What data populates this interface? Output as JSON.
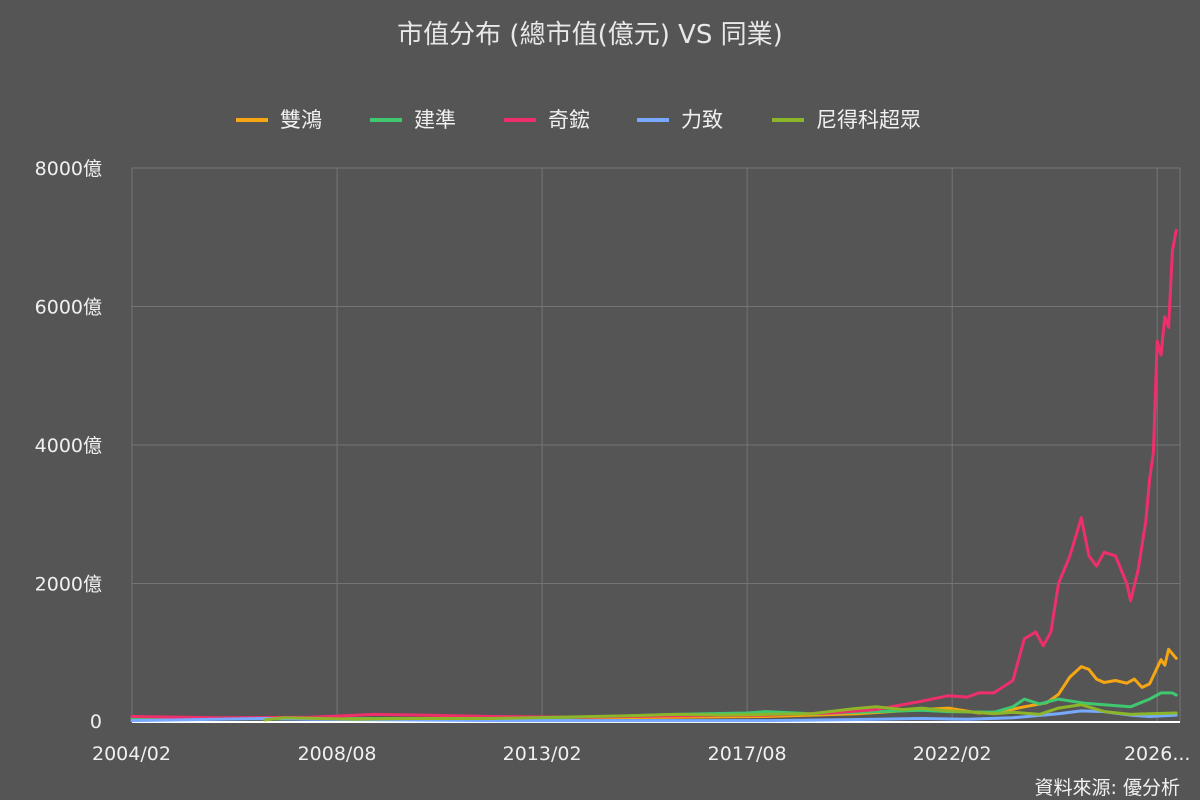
{
  "chart_data": {
    "type": "line",
    "title": "市值分布 (總市值(億元) VS 同業)",
    "source": "資料來源: 優分析",
    "ylim": [
      0,
      8000
    ],
    "y_ticks": [
      "0",
      "2000億",
      "4000億",
      "6000億",
      "8000億"
    ],
    "y_tick_values": [
      0,
      2000,
      4000,
      6000,
      8000
    ],
    "x_ticks": [
      "2004/02",
      "2008/08",
      "2013/02",
      "2017/08",
      "2022/02",
      "2026..."
    ],
    "x_tick_values": [
      "2004-02",
      "2008-08",
      "2013-02",
      "2017-08",
      "2022-02",
      "2026-08"
    ],
    "x_range": [
      "2004-02",
      "2027-02"
    ],
    "grid": true,
    "legend_position": "top",
    "series": [
      {
        "name": "雙鴻",
        "color": "#f5a612",
        "points": [
          [
            "2004-02",
            60
          ],
          [
            "2006-01",
            55
          ],
          [
            "2008-01",
            45
          ],
          [
            "2010-01",
            50
          ],
          [
            "2012-01",
            45
          ],
          [
            "2014-01",
            60
          ],
          [
            "2016-01",
            70
          ],
          [
            "2018-01",
            80
          ],
          [
            "2020-01",
            120
          ],
          [
            "2021-06",
            180
          ],
          [
            "2022-01",
            200
          ],
          [
            "2022-09",
            130
          ],
          [
            "2023-03",
            150
          ],
          [
            "2023-09",
            220
          ],
          [
            "2024-03",
            280
          ],
          [
            "2024-06",
            400
          ],
          [
            "2024-09",
            650
          ],
          [
            "2024-12",
            800
          ],
          [
            "2025-02",
            760
          ],
          [
            "2025-04",
            620
          ],
          [
            "2025-06",
            570
          ],
          [
            "2025-09",
            600
          ],
          [
            "2025-12",
            560
          ],
          [
            "2026-02",
            620
          ],
          [
            "2026-04",
            500
          ],
          [
            "2026-06",
            550
          ],
          [
            "2026-09",
            900
          ],
          [
            "2026-10",
            820
          ],
          [
            "2026-11",
            1050
          ],
          [
            "2027-01",
            920
          ]
        ]
      },
      {
        "name": "建準",
        "color": "#3fc870",
        "points": [
          [
            "2004-02",
            60
          ],
          [
            "2006-01",
            50
          ],
          [
            "2008-01",
            45
          ],
          [
            "2010-01",
            50
          ],
          [
            "2012-01",
            45
          ],
          [
            "2014-01",
            70
          ],
          [
            "2016-01",
            110
          ],
          [
            "2017-08",
            130
          ],
          [
            "2018-01",
            150
          ],
          [
            "2019-01",
            120
          ],
          [
            "2020-01",
            140
          ],
          [
            "2021-06",
            170
          ],
          [
            "2022-01",
            150
          ],
          [
            "2023-01",
            140
          ],
          [
            "2023-06",
            220
          ],
          [
            "2023-09",
            330
          ],
          [
            "2024-01",
            260
          ],
          [
            "2024-06",
            330
          ],
          [
            "2025-01",
            270
          ],
          [
            "2025-06",
            250
          ],
          [
            "2026-01",
            220
          ],
          [
            "2026-06",
            330
          ],
          [
            "2026-09",
            420
          ],
          [
            "2026-12",
            420
          ],
          [
            "2027-01",
            390
          ]
        ]
      },
      {
        "name": "奇鋐",
        "color": "#ee2f6b",
        "points": [
          [
            "2004-02",
            80
          ],
          [
            "2006-01",
            60
          ],
          [
            "2008-01",
            70
          ],
          [
            "2009-06",
            110
          ],
          [
            "2010-06",
            100
          ],
          [
            "2012-01",
            80
          ],
          [
            "2014-01",
            70
          ],
          [
            "2016-01",
            90
          ],
          [
            "2018-01",
            100
          ],
          [
            "2019-06",
            130
          ],
          [
            "2020-06",
            180
          ],
          [
            "2021-06",
            300
          ],
          [
            "2022-01",
            380
          ],
          [
            "2022-06",
            360
          ],
          [
            "2022-09",
            420
          ],
          [
            "2023-01",
            420
          ],
          [
            "2023-06",
            600
          ],
          [
            "2023-09",
            1200
          ],
          [
            "2023-12",
            1300
          ],
          [
            "2024-02",
            1100
          ],
          [
            "2024-04",
            1300
          ],
          [
            "2024-06",
            2000
          ],
          [
            "2024-09",
            2400
          ],
          [
            "2024-12",
            2950
          ],
          [
            "2025-02",
            2400
          ],
          [
            "2025-04",
            2250
          ],
          [
            "2025-06",
            2450
          ],
          [
            "2025-09",
            2400
          ],
          [
            "2025-12",
            2000
          ],
          [
            "2026-01",
            1750
          ],
          [
            "2026-03",
            2200
          ],
          [
            "2026-05",
            2900
          ],
          [
            "2026-06",
            3500
          ],
          [
            "2026-07",
            3900
          ],
          [
            "2026-08",
            5500
          ],
          [
            "2026-09",
            5300
          ],
          [
            "2026-10",
            5850
          ],
          [
            "2026-11",
            5700
          ],
          [
            "2026-12",
            6800
          ],
          [
            "2027-01",
            7100
          ]
        ]
      },
      {
        "name": "力致",
        "color": "#77aaff",
        "points": [
          [
            "2004-02",
            20
          ],
          [
            "2007-01",
            50
          ],
          [
            "2008-01",
            40
          ],
          [
            "2010-01",
            30
          ],
          [
            "2012-01",
            20
          ],
          [
            "2014-01",
            20
          ],
          [
            "2016-01",
            20
          ],
          [
            "2018-01",
            20
          ],
          [
            "2019-06",
            30
          ],
          [
            "2020-06",
            40
          ],
          [
            "2021-06",
            50
          ],
          [
            "2022-06",
            40
          ],
          [
            "2023-06",
            60
          ],
          [
            "2024-06",
            120
          ],
          [
            "2024-12",
            160
          ],
          [
            "2025-06",
            150
          ],
          [
            "2026-01",
            100
          ],
          [
            "2026-06",
            80
          ],
          [
            "2027-01",
            100
          ]
        ]
      },
      {
        "name": "尼得科超眾",
        "color": "#8db52a",
        "points": [
          [
            "2007-01",
            30
          ],
          [
            "2007-06",
            60
          ],
          [
            "2009-01",
            40
          ],
          [
            "2010-06",
            50
          ],
          [
            "2012-01",
            50
          ],
          [
            "2013-06",
            70
          ],
          [
            "2015-01",
            90
          ],
          [
            "2016-01",
            110
          ],
          [
            "2017-01",
            100
          ],
          [
            "2018-01",
            110
          ],
          [
            "2019-01",
            120
          ],
          [
            "2019-12",
            190
          ],
          [
            "2020-06",
            220
          ],
          [
            "2021-01",
            180
          ],
          [
            "2021-06",
            200
          ],
          [
            "2022-01",
            160
          ],
          [
            "2022-06",
            150
          ],
          [
            "2023-01",
            120
          ],
          [
            "2023-06",
            140
          ],
          [
            "2024-01",
            110
          ],
          [
            "2024-06",
            200
          ],
          [
            "2024-12",
            250
          ],
          [
            "2025-06",
            150
          ],
          [
            "2026-01",
            110
          ],
          [
            "2026-06",
            120
          ],
          [
            "2027-01",
            130
          ]
        ]
      }
    ]
  }
}
